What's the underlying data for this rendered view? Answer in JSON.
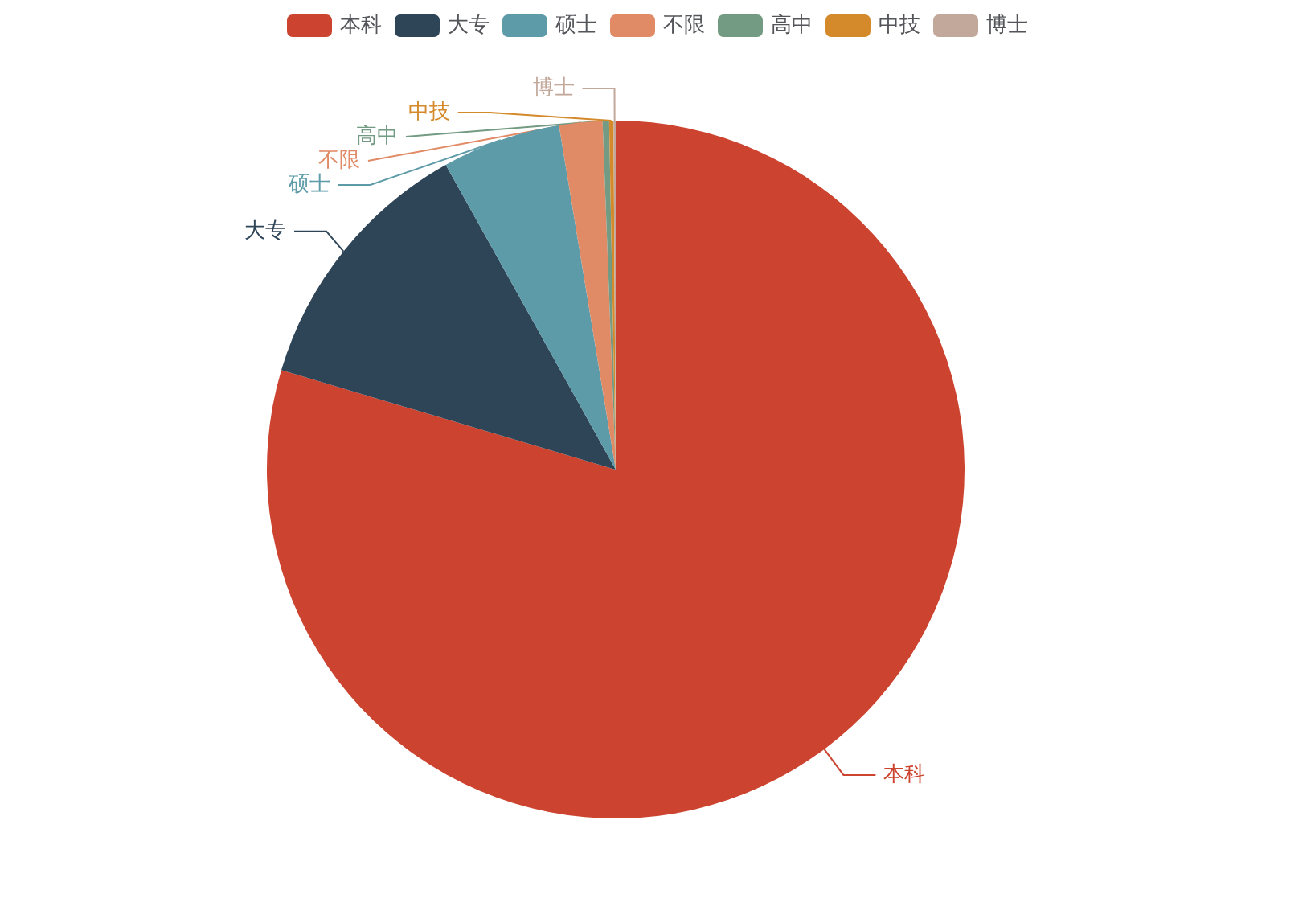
{
  "chart_data": {
    "type": "pie",
    "categories": [
      "本科",
      "大专",
      "硕士",
      "不限",
      "高中",
      "中技",
      "博士"
    ],
    "values": [
      79.6,
      12.3,
      5.5,
      2.0,
      0.3,
      0.2,
      0.1
    ],
    "colors": [
      "#cc432f",
      "#2e4457",
      "#5d9ba9",
      "#e08a66",
      "#739a82",
      "#d4892a",
      "#c2a89a"
    ],
    "legend": "top"
  }
}
